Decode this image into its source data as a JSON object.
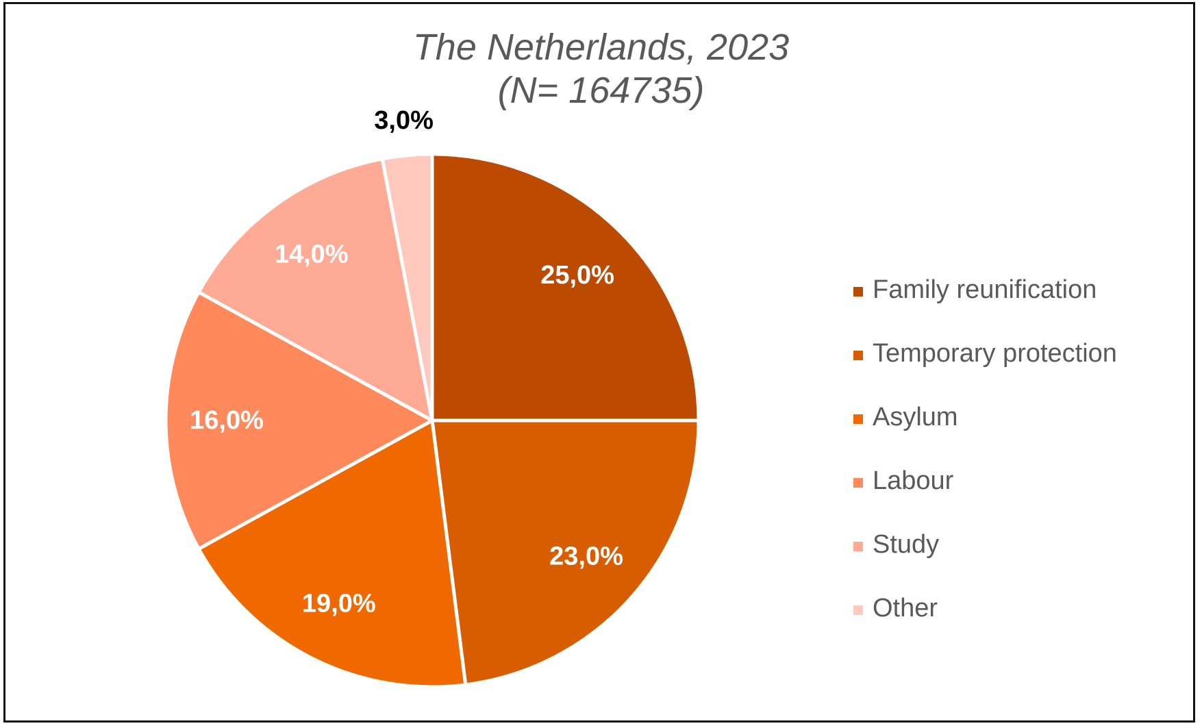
{
  "chart_data": {
    "type": "pie",
    "title": "The Netherlands, 2023",
    "subtitle": "(N= 164735)",
    "legend_position": "right",
    "slices": [
      {
        "label": "Family reunification",
        "value": 25.0,
        "display": "25,0%",
        "color": "#BC4A00"
      },
      {
        "label": "Temporary protection",
        "value": 23.0,
        "display": "23,0%",
        "color": "#D85C00"
      },
      {
        "label": "Asylum",
        "value": 19.0,
        "display": "19,0%",
        "color": "#F06800"
      },
      {
        "label": "Labour",
        "value": 16.0,
        "display": "16,0%",
        "color": "#FF895A"
      },
      {
        "label": "Study",
        "value": 14.0,
        "display": "14,0%",
        "color": "#FFAA94"
      },
      {
        "label": "Other",
        "value": 3.0,
        "display": "3,0%",
        "color": "#FFC9BD"
      }
    ]
  }
}
